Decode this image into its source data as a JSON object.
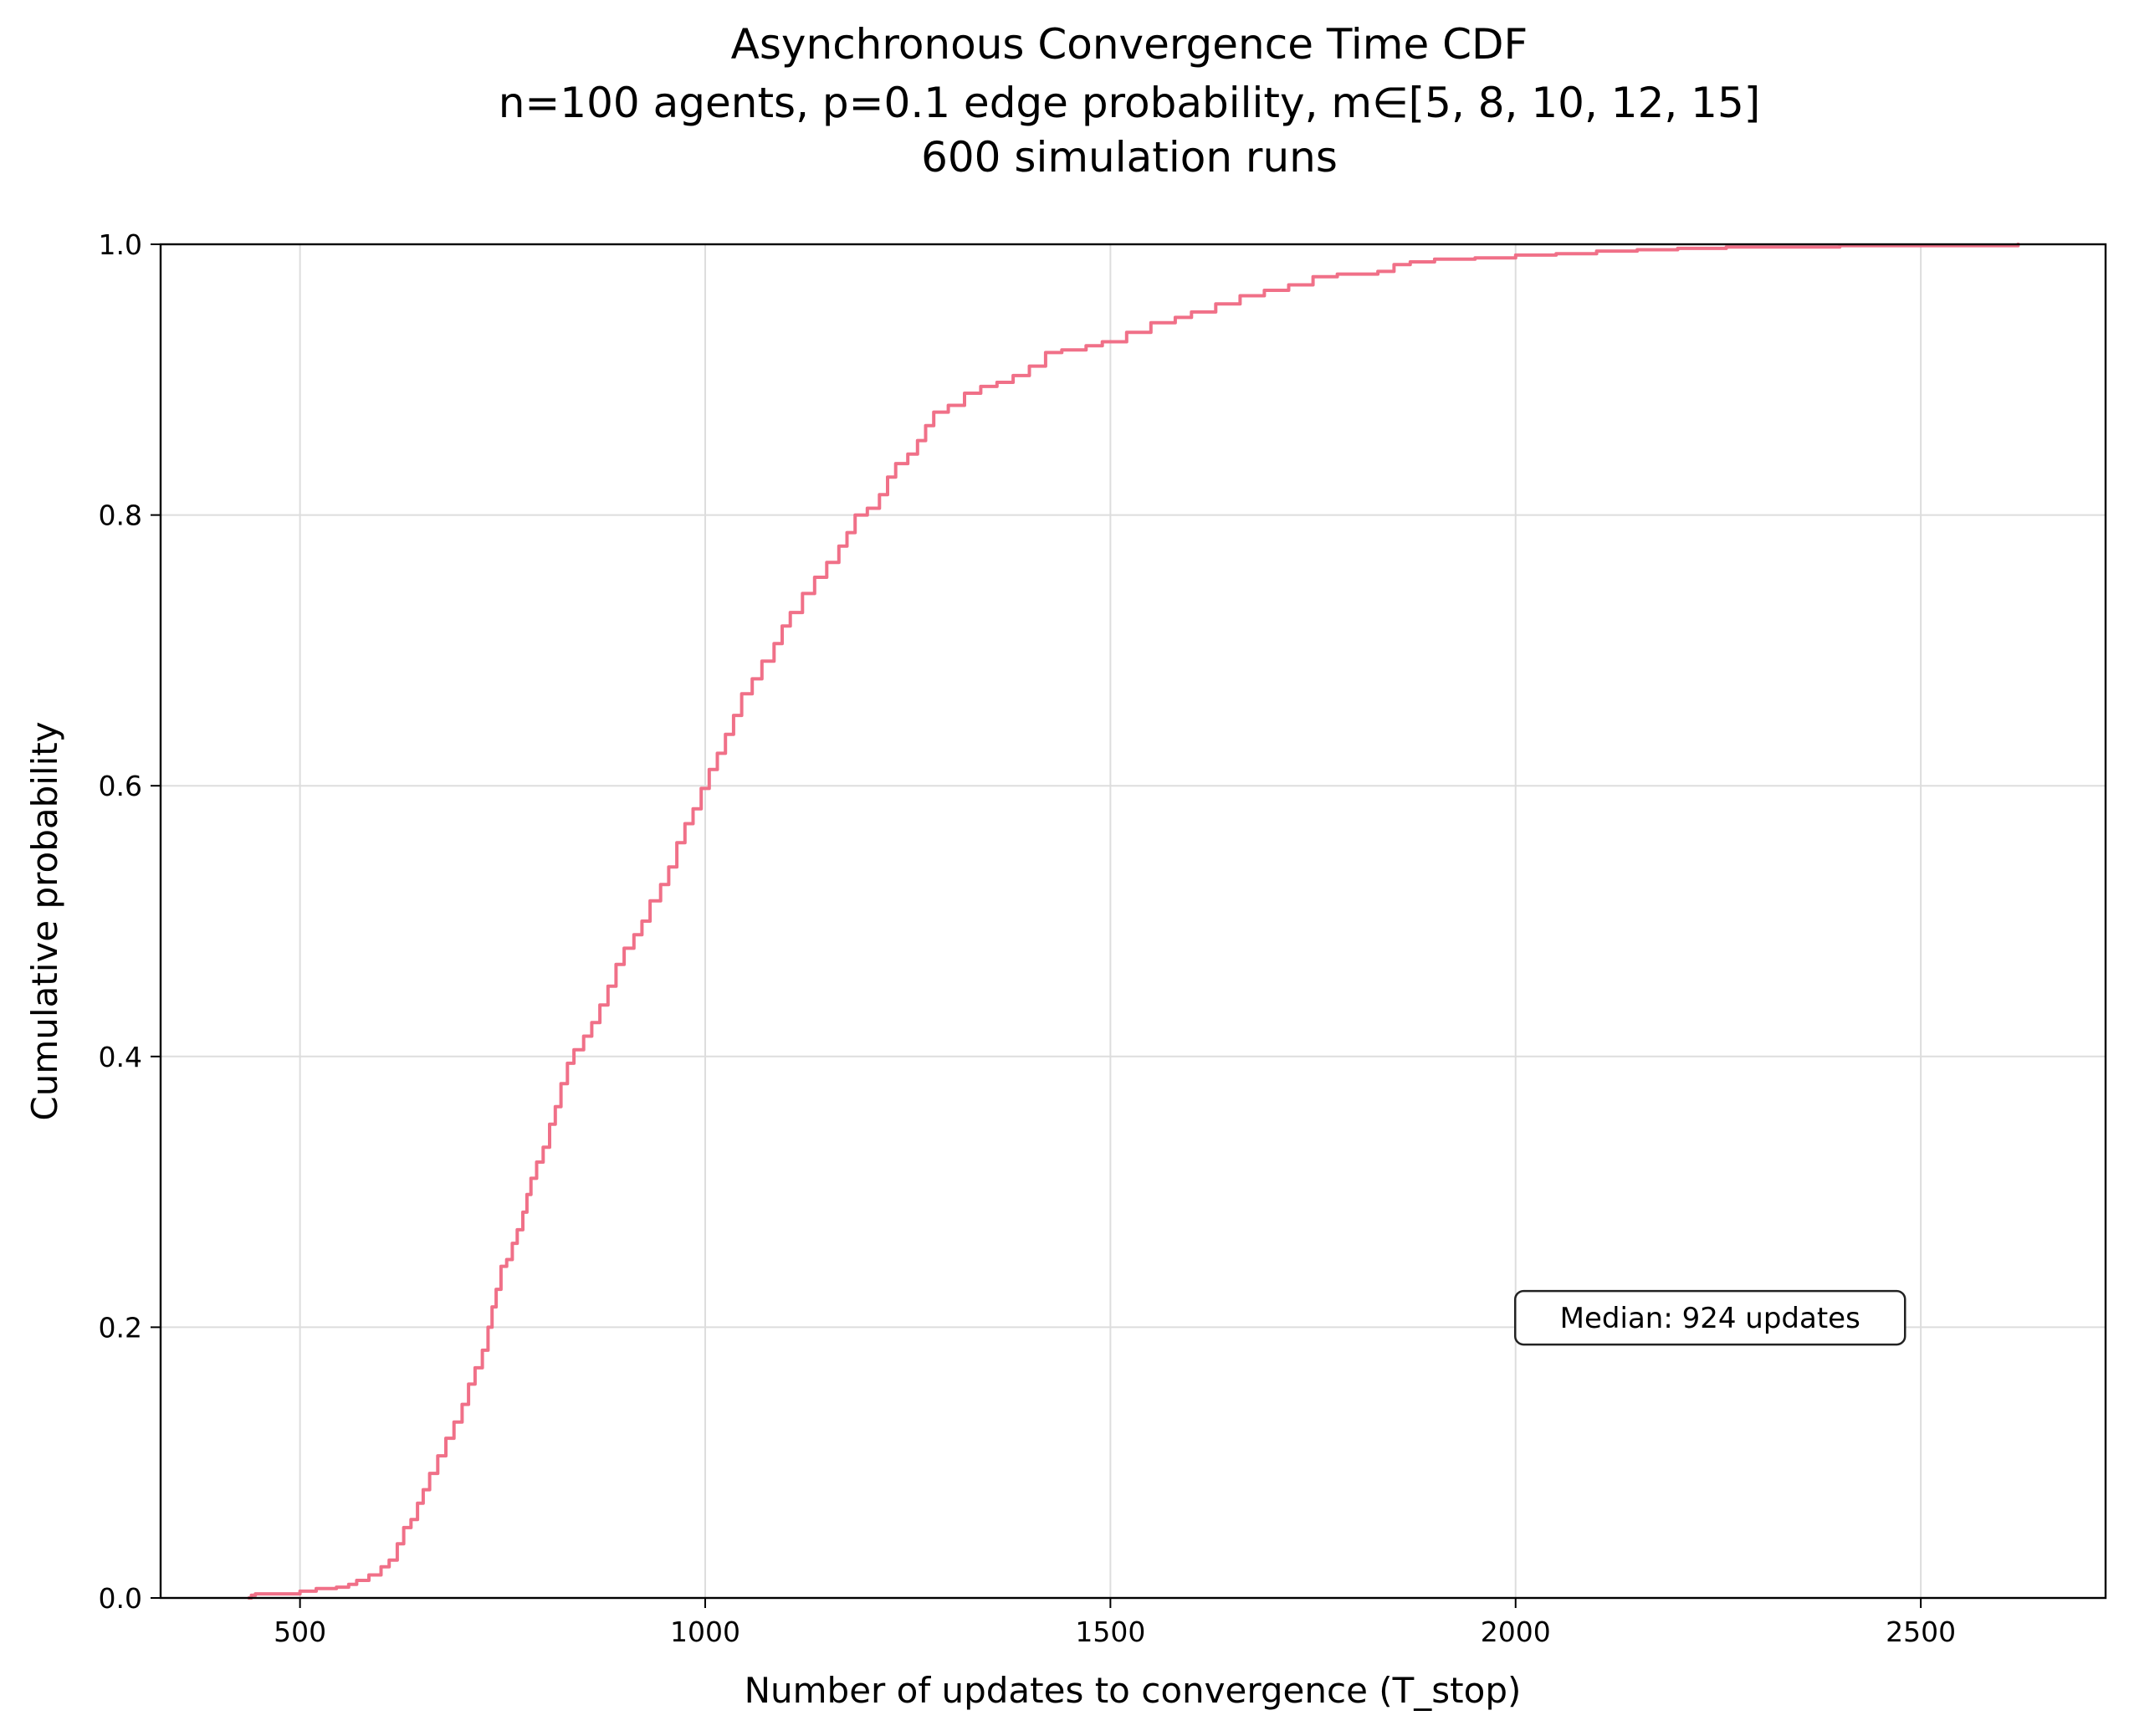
{
  "chart_data": {
    "type": "line",
    "title_lines": [
      "Asynchronous Convergence Time CDF",
      "n=100 agents, p=0.1 edge probability, m∈[5, 8, 10, 12, 15]",
      "600 simulation runs"
    ],
    "xlabel": "Number of updates to convergence (T_stop)",
    "ylabel": "Cumulative probability",
    "xlim": [
      328,
      2728
    ],
    "ylim": [
      0,
      1
    ],
    "xticks": [
      500,
      1000,
      1500,
      2000,
      2500
    ],
    "xtick_labels": [
      "500",
      "1000",
      "1500",
      "2000",
      "2500"
    ],
    "yticks": [
      0,
      0.2,
      0.4,
      0.6,
      0.8,
      1.0
    ],
    "ytick_labels": [
      "0.0",
      "0.2",
      "0.4",
      "0.6",
      "0.8",
      "1.0"
    ],
    "grid": true,
    "line_color": "#f07088",
    "annotation": {
      "text": "Median: 924 updates",
      "x": 2240,
      "y": 0.207
    },
    "series": [
      {
        "points": [
          [
            437,
            0.0
          ],
          [
            440,
            0.002
          ],
          [
            445,
            0.003
          ],
          [
            470,
            0.003
          ],
          [
            495,
            0.003
          ],
          [
            500,
            0.005
          ],
          [
            520,
            0.007
          ],
          [
            545,
            0.008
          ],
          [
            560,
            0.01
          ],
          [
            570,
            0.013
          ],
          [
            585,
            0.017
          ],
          [
            600,
            0.023
          ],
          [
            610,
            0.028
          ],
          [
            620,
            0.04
          ],
          [
            628,
            0.052
          ],
          [
            637,
            0.058
          ],
          [
            645,
            0.07
          ],
          [
            652,
            0.08
          ],
          [
            660,
            0.092
          ],
          [
            670,
            0.105
          ],
          [
            680,
            0.118
          ],
          [
            690,
            0.13
          ],
          [
            700,
            0.143
          ],
          [
            708,
            0.158
          ],
          [
            716,
            0.17
          ],
          [
            725,
            0.183
          ],
          [
            732,
            0.2
          ],
          [
            737,
            0.215
          ],
          [
            742,
            0.228
          ],
          [
            748,
            0.245
          ],
          [
            755,
            0.25
          ],
          [
            762,
            0.262
          ],
          [
            768,
            0.272
          ],
          [
            775,
            0.285
          ],
          [
            780,
            0.298
          ],
          [
            785,
            0.31
          ],
          [
            792,
            0.322
          ],
          [
            800,
            0.333
          ],
          [
            808,
            0.35
          ],
          [
            815,
            0.363
          ],
          [
            822,
            0.38
          ],
          [
            830,
            0.395
          ],
          [
            838,
            0.405
          ],
          [
            850,
            0.415
          ],
          [
            860,
            0.425
          ],
          [
            870,
            0.438
          ],
          [
            880,
            0.452
          ],
          [
            890,
            0.468
          ],
          [
            900,
            0.48
          ],
          [
            912,
            0.49
          ],
          [
            922,
            0.5
          ],
          [
            932,
            0.515
          ],
          [
            945,
            0.527
          ],
          [
            955,
            0.54
          ],
          [
            965,
            0.558
          ],
          [
            975,
            0.572
          ],
          [
            985,
            0.583
          ],
          [
            995,
            0.598
          ],
          [
            1005,
            0.612
          ],
          [
            1015,
            0.624
          ],
          [
            1025,
            0.638
          ],
          [
            1035,
            0.652
          ],
          [
            1045,
            0.668
          ],
          [
            1058,
            0.679
          ],
          [
            1070,
            0.692
          ],
          [
            1085,
            0.705
          ],
          [
            1095,
            0.718
          ],
          [
            1105,
            0.728
          ],
          [
            1120,
            0.742
          ],
          [
            1135,
            0.754
          ],
          [
            1150,
            0.765
          ],
          [
            1165,
            0.777
          ],
          [
            1175,
            0.787
          ],
          [
            1185,
            0.8
          ],
          [
            1200,
            0.805
          ],
          [
            1215,
            0.815
          ],
          [
            1225,
            0.828
          ],
          [
            1235,
            0.838
          ],
          [
            1250,
            0.845
          ],
          [
            1262,
            0.855
          ],
          [
            1272,
            0.866
          ],
          [
            1282,
            0.876
          ],
          [
            1300,
            0.881
          ],
          [
            1320,
            0.89
          ],
          [
            1340,
            0.895
          ],
          [
            1360,
            0.898
          ],
          [
            1380,
            0.903
          ],
          [
            1400,
            0.91
          ],
          [
            1420,
            0.92
          ],
          [
            1440,
            0.922
          ],
          [
            1470,
            0.925
          ],
          [
            1490,
            0.928
          ],
          [
            1520,
            0.935
          ],
          [
            1550,
            0.942
          ],
          [
            1580,
            0.946
          ],
          [
            1600,
            0.95
          ],
          [
            1630,
            0.956
          ],
          [
            1660,
            0.962
          ],
          [
            1690,
            0.966
          ],
          [
            1720,
            0.97
          ],
          [
            1750,
            0.976
          ],
          [
            1780,
            0.978
          ],
          [
            1830,
            0.98
          ],
          [
            1850,
            0.985
          ],
          [
            1870,
            0.987
          ],
          [
            1900,
            0.989
          ],
          [
            1950,
            0.99
          ],
          [
            2000,
            0.992
          ],
          [
            2050,
            0.993
          ],
          [
            2100,
            0.995
          ],
          [
            2150,
            0.996
          ],
          [
            2200,
            0.997
          ],
          [
            2260,
            0.998
          ],
          [
            2300,
            0.998
          ],
          [
            2400,
            0.999
          ],
          [
            2500,
            0.999
          ],
          [
            2620,
            1.0
          ]
        ]
      }
    ]
  }
}
